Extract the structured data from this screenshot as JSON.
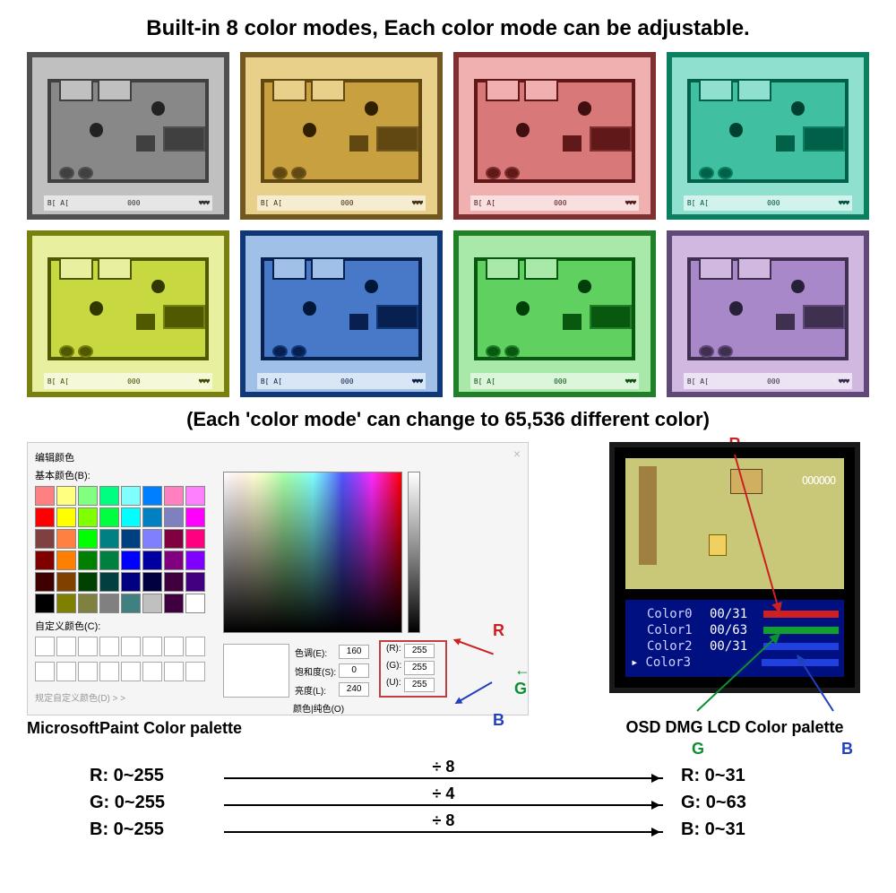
{
  "heading": "Built-in 8 color modes, Each color mode can be adjustable.",
  "subheading": "(Each 'color mode' can change to 65,536 different color)",
  "thumbs": [
    {
      "border": "#505050",
      "floor": "#888888",
      "wall": "#c0c0c0",
      "accent": "#404040",
      "sprite": "#222222",
      "text": "#303030"
    },
    {
      "border": "#705820",
      "floor": "#c8a040",
      "wall": "#e8d08a",
      "accent": "#604810",
      "sprite": "#302000",
      "text": "#403010"
    },
    {
      "border": "#803030",
      "floor": "#d87878",
      "wall": "#f0b0b0",
      "accent": "#601818",
      "sprite": "#401010",
      "text": "#501818"
    },
    {
      "border": "#0a8060",
      "floor": "#40c0a0",
      "wall": "#90e0d0",
      "accent": "#006048",
      "sprite": "#004030",
      "text": "#005040"
    },
    {
      "border": "#788010",
      "floor": "#c8d840",
      "wall": "#e8f0a0",
      "accent": "#505800",
      "sprite": "#303800",
      "text": "#404800"
    },
    {
      "border": "#103878",
      "floor": "#4878c8",
      "wall": "#a0c0e8",
      "accent": "#082050",
      "sprite": "#001838",
      "text": "#082048"
    },
    {
      "border": "#208028",
      "floor": "#60d060",
      "wall": "#a8e8a8",
      "accent": "#085810",
      "sprite": "#004008",
      "text": "#085010"
    },
    {
      "border": "#604878",
      "floor": "#a888c8",
      "wall": "#d0b8e0",
      "accent": "#403050",
      "sprite": "#282038",
      "text": "#382848"
    }
  ],
  "hud": {
    "left": "B[    A[",
    "rupee": "000",
    "hearts": "♥♥♥"
  },
  "paint": {
    "title": "编辑颜色",
    "basic_label": "基本颜色(B):",
    "custom_label": "自定义颜色(C):",
    "define": "规定自定义颜色(D) > >",
    "pure": "颜色|纯色(O)",
    "hue_l": "色调(E):",
    "hue_v": "160",
    "sat_l": "饱和度(S):",
    "sat_v": "0",
    "lum_l": "亮度(L):",
    "lum_v": "240",
    "r_l": "(R):",
    "r_v": "255",
    "g_l": "(G):",
    "g_v": "255",
    "b_l": "(U):",
    "b_v": "255",
    "basic_colors": [
      "#ff8080",
      "#ffff80",
      "#80ff80",
      "#00ff80",
      "#80ffff",
      "#0080ff",
      "#ff80c0",
      "#ff80ff",
      "#ff0000",
      "#ffff00",
      "#80ff00",
      "#00ff40",
      "#00ffff",
      "#0080c0",
      "#8080c0",
      "#ff00ff",
      "#804040",
      "#ff8040",
      "#00ff00",
      "#008080",
      "#004080",
      "#8080ff",
      "#800040",
      "#ff0080",
      "#800000",
      "#ff8000",
      "#008000",
      "#008040",
      "#0000ff",
      "#0000a0",
      "#800080",
      "#8000ff",
      "#400000",
      "#804000",
      "#004000",
      "#004040",
      "#000080",
      "#000040",
      "#400040",
      "#400080",
      "#000000",
      "#808000",
      "#808040",
      "#808080",
      "#408080",
      "#c0c0c0",
      "#400040",
      "#ffffff"
    ]
  },
  "ann": {
    "r": "R",
    "g": "G",
    "b": "B"
  },
  "paint_caption": "MicrosoftPaint Color palette",
  "osd_caption": "OSD DMG LCD Color palette",
  "osd": {
    "balls": "OOOOOO",
    "rows": [
      {
        "label": "Color0",
        "val": "00/31",
        "bar": "#d02020"
      },
      {
        "label": "Color1",
        "val": "00/63",
        "bar": "#10a030"
      },
      {
        "label": "Color2",
        "val": "00/31",
        "bar": "#2040e0"
      },
      {
        "label": "Color3",
        "val": "",
        "bar": "#2040e0",
        "cursor": "▸"
      }
    ],
    "menu_bg": "#001080",
    "game_bg": "#c8c878"
  },
  "conv": [
    {
      "l": "R: 0~255",
      "m": "÷ 8",
      "r": "R: 0~31"
    },
    {
      "l": "G: 0~255",
      "m": "÷ 4",
      "r": "G: 0~63"
    },
    {
      "l": "B: 0~255",
      "m": "÷ 8",
      "r": "B: 0~31"
    }
  ]
}
